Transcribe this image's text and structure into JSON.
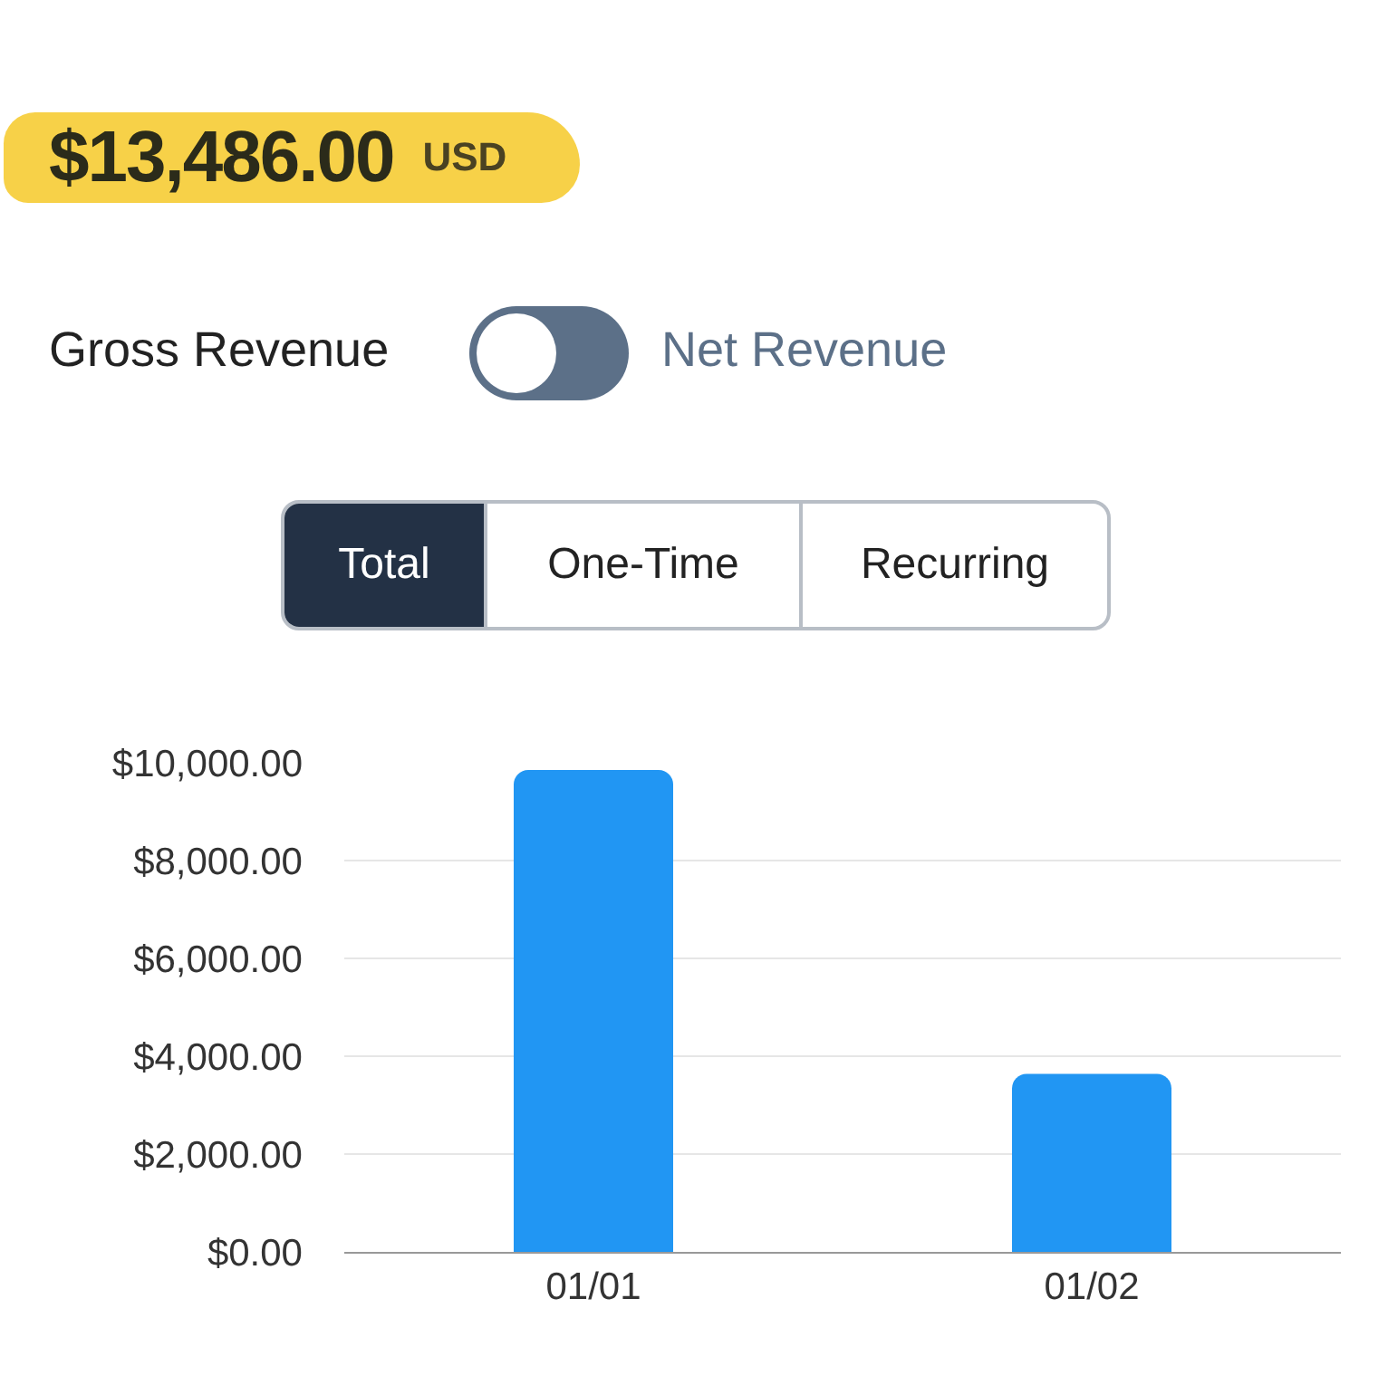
{
  "chart_data": {
    "type": "bar",
    "title": "$13,486.00",
    "subtitle": "USD",
    "annotations": [
      "Gross Revenue",
      "Net Revenue",
      "Total",
      "One-Time",
      "Recurring"
    ],
    "categories": [
      "01/01",
      "01/02"
    ],
    "values": [
      9850,
      3640
    ],
    "color": "#2196f3",
    "ylim": [
      0,
      10000
    ],
    "yticks": [
      {
        "value": 0,
        "label": "$0.00"
      },
      {
        "value": 2000,
        "label": "$2,000.00"
      },
      {
        "value": 4000,
        "label": "$4,000.00"
      },
      {
        "value": 6000,
        "label": "$6,000.00"
      },
      {
        "value": 8000,
        "label": "$8,000.00"
      },
      {
        "value": 10000,
        "label": "$10,000.00"
      }
    ],
    "grid": "y"
  }
}
